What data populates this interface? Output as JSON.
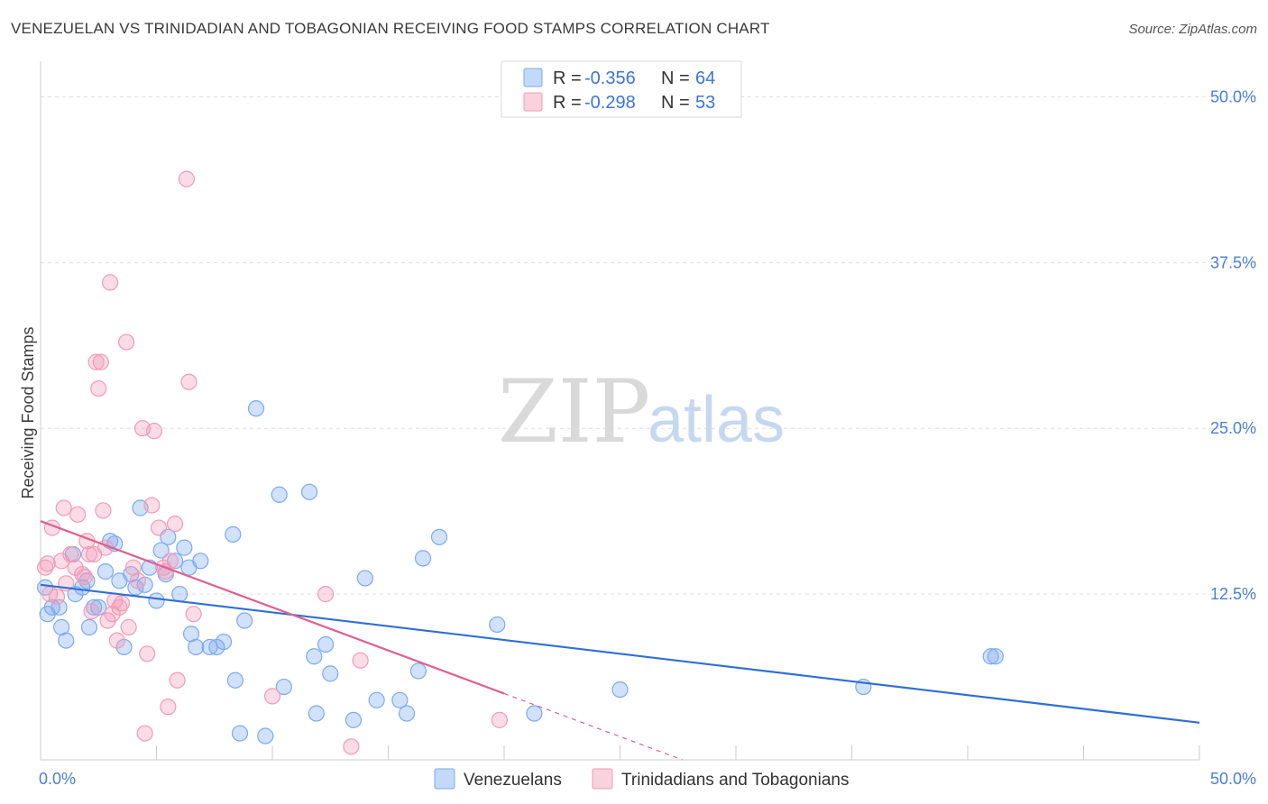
{
  "title": "VENEZUELAN VS TRINIDADIAN AND TOBAGONIAN RECEIVING FOOD STAMPS CORRELATION CHART",
  "source": "Source: ZipAtlas.com",
  "watermark": {
    "zip": "ZIP",
    "atlas": "atlas"
  },
  "legend": {
    "r_label": "R =",
    "n_label": "N =",
    "rows": [
      {
        "r": "-0.356",
        "n": "64",
        "color": "#7aaaf0"
      },
      {
        "r": "-0.298",
        "n": "53",
        "color": "#f19bb6"
      }
    ]
  },
  "chart_data": {
    "type": "scatter",
    "title": "VENEZUELAN VS TRINIDADIAN AND TOBAGONIAN RECEIVING FOOD STAMPS CORRELATION CHART",
    "ylabel": "Receiving Food Stamps",
    "xlim": [
      0,
      50
    ],
    "ylim": [
      0,
      52
    ],
    "x_tick_labels": [
      "0.0%",
      "50.0%"
    ],
    "y_ticks": [
      12.5,
      25.0,
      37.5,
      50.0
    ],
    "y_tick_labels": [
      "12.5%",
      "25.0%",
      "37.5%",
      "50.0%"
    ],
    "series": [
      {
        "name": "Venezuelans",
        "color": "#7aaaf0",
        "line_color": "#2f6fd4",
        "trend": {
          "x0": 0,
          "y0": 13.2,
          "x1": 50,
          "y1": 2.8
        },
        "points": [
          [
            0.2,
            13.0
          ],
          [
            0.3,
            11.0
          ],
          [
            0.5,
            11.5
          ],
          [
            0.8,
            11.5
          ],
          [
            0.9,
            10.0
          ],
          [
            1.1,
            9.0
          ],
          [
            1.4,
            15.5
          ],
          [
            1.5,
            12.5
          ],
          [
            1.8,
            13.0
          ],
          [
            2.0,
            13.5
          ],
          [
            2.1,
            10.0
          ],
          [
            2.3,
            11.5
          ],
          [
            2.5,
            11.5
          ],
          [
            2.8,
            14.2
          ],
          [
            3.0,
            16.5
          ],
          [
            3.2,
            16.3
          ],
          [
            3.4,
            13.5
          ],
          [
            3.6,
            8.5
          ],
          [
            3.9,
            14.0
          ],
          [
            4.1,
            13.0
          ],
          [
            4.3,
            19.0
          ],
          [
            4.5,
            13.2
          ],
          [
            4.7,
            14.5
          ],
          [
            5.0,
            12.0
          ],
          [
            5.2,
            15.8
          ],
          [
            5.4,
            14.0
          ],
          [
            5.5,
            16.8
          ],
          [
            5.8,
            15.0
          ],
          [
            6.0,
            12.5
          ],
          [
            6.2,
            16.0
          ],
          [
            6.4,
            14.5
          ],
          [
            6.5,
            9.5
          ],
          [
            6.7,
            8.5
          ],
          [
            6.9,
            15.0
          ],
          [
            7.3,
            8.5
          ],
          [
            7.6,
            8.5
          ],
          [
            7.9,
            8.9
          ],
          [
            8.3,
            17.0
          ],
          [
            8.4,
            6.0
          ],
          [
            8.6,
            2.0
          ],
          [
            8.8,
            10.5
          ],
          [
            9.3,
            26.5
          ],
          [
            9.7,
            1.8
          ],
          [
            10.3,
            20.0
          ],
          [
            10.5,
            5.5
          ],
          [
            11.6,
            20.2
          ],
          [
            11.8,
            7.8
          ],
          [
            11.9,
            3.5
          ],
          [
            12.3,
            8.7
          ],
          [
            12.5,
            6.5
          ],
          [
            13.5,
            3.0
          ],
          [
            14.0,
            13.7
          ],
          [
            14.5,
            4.5
          ],
          [
            15.5,
            4.5
          ],
          [
            15.8,
            3.5
          ],
          [
            16.3,
            6.7
          ],
          [
            16.5,
            15.2
          ],
          [
            17.2,
            16.8
          ],
          [
            19.7,
            10.2
          ],
          [
            21.3,
            3.5
          ],
          [
            25.0,
            5.3
          ],
          [
            35.5,
            5.5
          ],
          [
            41.0,
            7.8
          ],
          [
            41.2,
            7.8
          ]
        ]
      },
      {
        "name": "Trinidadians and Tobagonians",
        "color": "#f19bb6",
        "line_color": "#e0608e",
        "trend": {
          "x0": 0,
          "y0": 18.0,
          "x1": 20,
          "y1": 5.0
        },
        "trend_dashed": {
          "x0": 20,
          "y0": 5.0,
          "x1": 27.7,
          "y1": 0
        },
        "points": [
          [
            0.2,
            14.5
          ],
          [
            0.3,
            14.8
          ],
          [
            0.4,
            12.5
          ],
          [
            0.5,
            17.5
          ],
          [
            0.7,
            12.3
          ],
          [
            0.9,
            15.0
          ],
          [
            1.0,
            19.0
          ],
          [
            1.1,
            13.3
          ],
          [
            1.3,
            15.5
          ],
          [
            1.5,
            14.5
          ],
          [
            1.6,
            18.5
          ],
          [
            1.8,
            14.0
          ],
          [
            1.9,
            13.8
          ],
          [
            2.0,
            16.5
          ],
          [
            2.1,
            15.5
          ],
          [
            2.2,
            11.2
          ],
          [
            2.3,
            15.5
          ],
          [
            2.4,
            30.0
          ],
          [
            2.5,
            28.0
          ],
          [
            2.6,
            30.0
          ],
          [
            2.7,
            18.8
          ],
          [
            2.8,
            16.0
          ],
          [
            2.9,
            10.5
          ],
          [
            3.0,
            36.0
          ],
          [
            3.1,
            11.0
          ],
          [
            3.2,
            12.0
          ],
          [
            3.3,
            9.0
          ],
          [
            3.4,
            11.5
          ],
          [
            3.5,
            11.8
          ],
          [
            3.7,
            31.5
          ],
          [
            3.8,
            10.0
          ],
          [
            4.0,
            14.5
          ],
          [
            4.2,
            13.5
          ],
          [
            4.4,
            25.0
          ],
          [
            4.5,
            2.0
          ],
          [
            4.6,
            8.0
          ],
          [
            4.8,
            19.2
          ],
          [
            4.9,
            24.8
          ],
          [
            5.1,
            17.5
          ],
          [
            5.3,
            14.5
          ],
          [
            5.5,
            4.0
          ],
          [
            5.6,
            15.0
          ],
          [
            5.8,
            17.8
          ],
          [
            5.9,
            6.0
          ],
          [
            6.3,
            43.8
          ],
          [
            6.4,
            28.5
          ],
          [
            6.6,
            11.0
          ],
          [
            10.0,
            4.8
          ],
          [
            12.3,
            12.5
          ],
          [
            13.4,
            1.0
          ],
          [
            13.8,
            7.5
          ],
          [
            19.8,
            3.0
          ],
          [
            5.4,
            14.2
          ]
        ]
      }
    ]
  },
  "bottom_legend": [
    {
      "label": "Venezuelans",
      "color": "#7aaaf0"
    },
    {
      "label": "Trinidadians and Tobagonians",
      "color": "#f19bb6"
    }
  ]
}
